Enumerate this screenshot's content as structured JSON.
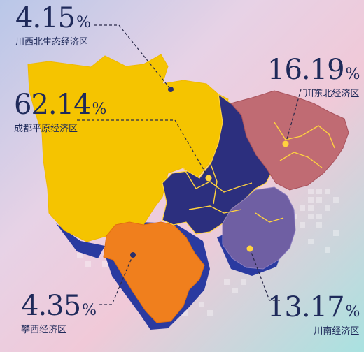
{
  "regions": [
    {
      "id": "chuanxibei",
      "name": "川西北生态经济区",
      "value": "4.15",
      "unit": "%",
      "color": "#f5c400"
    },
    {
      "id": "dongbei",
      "name": "川东北经济区",
      "value": "16.19",
      "unit": "%",
      "color": "#c06b73"
    },
    {
      "id": "chengdu",
      "name": "成都平原经济区",
      "value": "62.14",
      "unit": "%",
      "color": "#2c2f7e"
    },
    {
      "id": "panxi",
      "name": "攀西经济区",
      "value": "4.35",
      "unit": "%",
      "color": "#f07f1d"
    },
    {
      "id": "chuannan",
      "name": "川南经济区",
      "value": "13.17",
      "unit": "%",
      "color": "#6f5fa3"
    }
  ]
}
